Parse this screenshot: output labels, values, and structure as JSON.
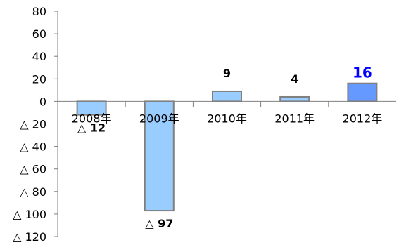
{
  "chart_data": {
    "type": "bar",
    "categories": [
      "2008年",
      "2009年",
      "2010年",
      "2011年",
      "2012年"
    ],
    "values": [
      -12,
      -97,
      9,
      4,
      16
    ],
    "data_labels": [
      "△ 12",
      "△ 97",
      "9",
      "4",
      "16"
    ],
    "y_tick_values": [
      80,
      60,
      40,
      20,
      0,
      -20,
      -40,
      -60,
      -80,
      -100,
      -120
    ],
    "y_tick_labels": [
      "80",
      "60",
      "40",
      "20",
      "0",
      "△ 20",
      "△ 40",
      "△ 60",
      "△ 80",
      "△ 100",
      "△ 120"
    ],
    "ylim": [
      -120,
      80
    ],
    "title": "",
    "xlabel": "",
    "ylabel": "",
    "grid": false,
    "colors": {
      "bar": "#99ccff",
      "bar_highlight": "#6699ff",
      "bar_border": "#808080",
      "highlight_label": "#0000ff"
    },
    "highlight_index": 4
  }
}
